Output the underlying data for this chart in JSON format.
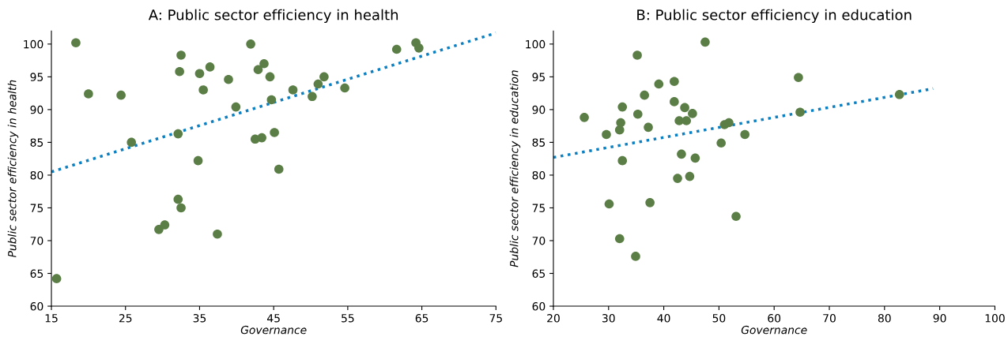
{
  "chart_data": [
    {
      "type": "scatter",
      "title": "A: Public sector efficiency in health",
      "xlabel": "Governance",
      "ylabel": "Public sector efficiency in health",
      "xlim": [
        15,
        75
      ],
      "xticks": [
        15,
        25,
        35,
        45,
        55,
        65,
        75
      ],
      "ylim": [
        60,
        102
      ],
      "yticks": [
        60,
        65,
        70,
        75,
        80,
        85,
        90,
        95,
        100
      ],
      "grid": false,
      "series": [
        {
          "marker": "circle",
          "color": "#5a7e45",
          "x": [
            15.7,
            18.3,
            20,
            24.4,
            25.8,
            32.1,
            32.3,
            32.5,
            32.1,
            32.5,
            29.5,
            30.3,
            35,
            35.5,
            34.8,
            36.4,
            37.4,
            38.9,
            39.9,
            41.9,
            42.9,
            43.7,
            44.5,
            44.7,
            42.5,
            43.4,
            45.1,
            45.7,
            47.6,
            50.2,
            51,
            51.8,
            54.6,
            61.6,
            64.2,
            64.6
          ],
          "values": [
            64.2,
            100.2,
            92.4,
            92.2,
            85,
            86.3,
            95.8,
            98.3,
            76.3,
            75,
            71.7,
            72.4,
            95.5,
            93,
            82.2,
            96.5,
            71,
            94.6,
            90.4,
            100,
            96.1,
            97,
            95,
            91.5,
            85.5,
            85.7,
            86.5,
            80.9,
            93,
            92,
            93.9,
            95,
            93.3,
            99.2,
            100.2,
            99.4
          ]
        },
        {
          "type": "line",
          "line_style": "dotted",
          "color": "#0a7fc1",
          "x": [
            15,
            75
          ],
          "values": [
            80.5,
            101.7
          ]
        }
      ]
    },
    {
      "type": "scatter",
      "title": "B: Public sector efficiency in education",
      "xlabel": "Governance",
      "ylabel": "Public sector efficiency in education",
      "xlim": [
        20,
        100
      ],
      "xticks": [
        20,
        30,
        40,
        50,
        60,
        70,
        80,
        90,
        100
      ],
      "ylim": [
        60,
        102
      ],
      "yticks": [
        60,
        65,
        70,
        75,
        80,
        85,
        90,
        95,
        100
      ],
      "grid": false,
      "series": [
        {
          "marker": "circle",
          "color": "#5a7e45",
          "x": [
            25.6,
            29.6,
            30.1,
            32,
            32.2,
            32.5,
            32.5,
            32,
            34.9,
            35.2,
            35.3,
            36.5,
            37.2,
            37.5,
            39.1,
            41.9,
            41.9,
            42.5,
            42.8,
            44.1,
            43.8,
            45.2,
            43.2,
            44.7,
            45.7,
            47.5,
            50.4,
            51,
            51.8,
            53.1,
            54.7,
            64.4,
            64.7,
            82.7
          ],
          "values": [
            88.8,
            86.2,
            75.6,
            86.9,
            88,
            90.4,
            82.2,
            70.3,
            67.6,
            98.3,
            89.3,
            92.2,
            87.3,
            75.8,
            93.9,
            94.3,
            91.2,
            79.5,
            88.3,
            88.3,
            90.3,
            89.4,
            83.2,
            79.8,
            82.6,
            100.3,
            84.9,
            87.7,
            88,
            73.7,
            86.2,
            94.9,
            89.6,
            92.3
          ]
        },
        {
          "type": "line",
          "line_style": "dotted",
          "color": "#0a7fc1",
          "x": [
            20,
            88.8
          ],
          "values": [
            82.7,
            93.2
          ]
        }
      ]
    }
  ]
}
